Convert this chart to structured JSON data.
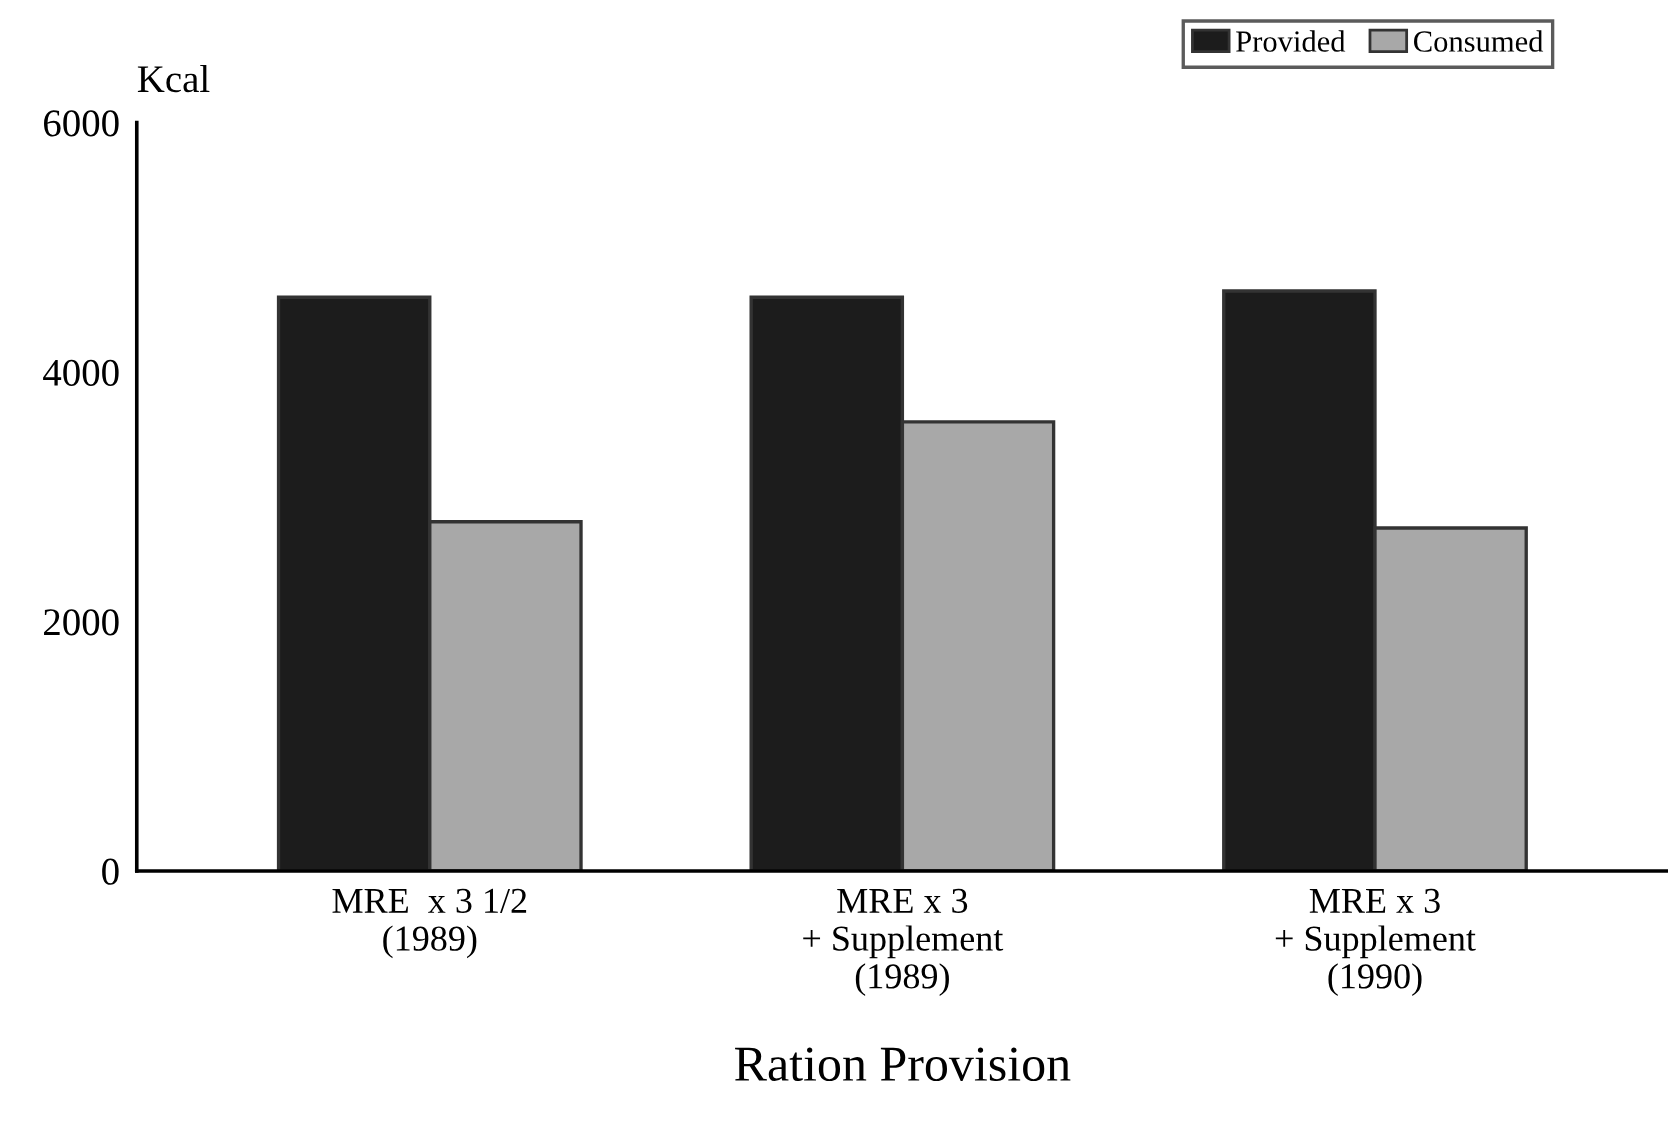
{
  "chart_data": {
    "type": "bar",
    "xlabel": "Ration Provision",
    "ylabel": "Kcal",
    "categories": [
      "MRE  x 3 1/2\n(1989)",
      "MRE x 3\n+ Supplement\n(1989)",
      "MRE x 3\n+ Supplement\n(1990)"
    ],
    "series": [
      {
        "name": "Provided",
        "color": "#1c1c1c",
        "values": [
          4600,
          4600,
          4650
        ]
      },
      {
        "name": "Consumed",
        "color": "#a8a8a8",
        "values": [
          2800,
          3600,
          2750
        ]
      }
    ],
    "ylim": [
      0,
      6000
    ],
    "yticks": [
      0,
      2000,
      4000,
      6000
    ],
    "grid": false,
    "legend": "top right"
  }
}
